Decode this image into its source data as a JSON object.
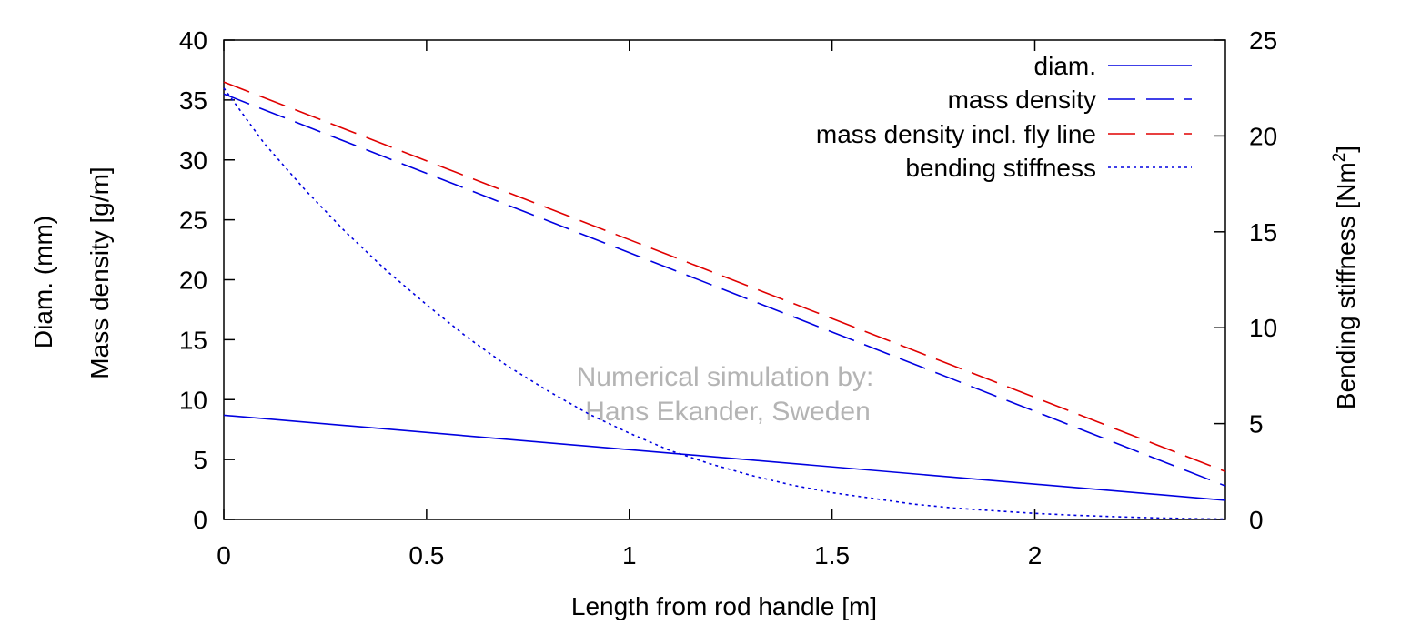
{
  "chart_data": {
    "type": "line",
    "title": "",
    "xlabel": "Length from rod handle [m]",
    "ylabel_left_line1": "Diam. (mm)",
    "ylabel_left_line2": "Mass density [g/m]",
    "ylabel_right": "Bending stiffness [Nm",
    "ylabel_right_sup": "2",
    "ylabel_right_end": "]",
    "xlim": [
      0,
      2.47
    ],
    "ylim": [
      0,
      40
    ],
    "y2lim": [
      0,
      25
    ],
    "x_ticks": [
      0,
      0.5,
      1,
      1.5,
      2
    ],
    "x_tick_labels": [
      "0",
      "0.5",
      "1",
      "1.5",
      "2"
    ],
    "y_ticks": [
      0,
      5,
      10,
      15,
      20,
      25,
      30,
      35,
      40
    ],
    "y_tick_labels": [
      "0",
      "5",
      "10",
      "15",
      "20",
      "25",
      "30",
      "35",
      "40"
    ],
    "y2_ticks": [
      0,
      5,
      10,
      15,
      20,
      25
    ],
    "y2_tick_labels": [
      "0",
      "5",
      "10",
      "15",
      "20",
      "25"
    ],
    "grid": false,
    "legend_position": "top-right",
    "series": [
      {
        "name": "diam.",
        "axis": "left",
        "color": "#0000e0",
        "style": "solid",
        "x": [
          0,
          2.47
        ],
        "y": [
          8.7,
          1.6
        ]
      },
      {
        "name": "mass density",
        "axis": "left",
        "color": "#0000e0",
        "style": "dashed",
        "x": [
          0,
          2.47
        ],
        "y": [
          35.5,
          2.8
        ]
      },
      {
        "name": "mass density incl. fly line",
        "axis": "left",
        "color": "#e00000",
        "style": "dashed",
        "x": [
          0,
          2.47
        ],
        "y": [
          36.5,
          4.0
        ]
      },
      {
        "name": "bending stiffness",
        "axis": "right",
        "color": "#0000e0",
        "style": "dotted",
        "x": [
          0,
          0.1,
          0.2,
          0.3,
          0.4,
          0.5,
          0.6,
          0.7,
          0.8,
          0.9,
          1.0,
          1.1,
          1.2,
          1.3,
          1.4,
          1.5,
          1.6,
          1.7,
          1.8,
          1.9,
          2.0,
          2.1,
          2.2,
          2.3,
          2.4,
          2.47
        ],
        "y": [
          22.5,
          19.6,
          17.2,
          15.0,
          13.0,
          11.2,
          9.5,
          8.0,
          6.7,
          5.5,
          4.5,
          3.6,
          2.9,
          2.3,
          1.8,
          1.4,
          1.1,
          0.8,
          0.6,
          0.45,
          0.32,
          0.22,
          0.14,
          0.08,
          0.04,
          0.02
        ]
      }
    ],
    "annotations": [
      "Numerical simulation by:",
      "Hans Ekander, Sweden"
    ]
  }
}
